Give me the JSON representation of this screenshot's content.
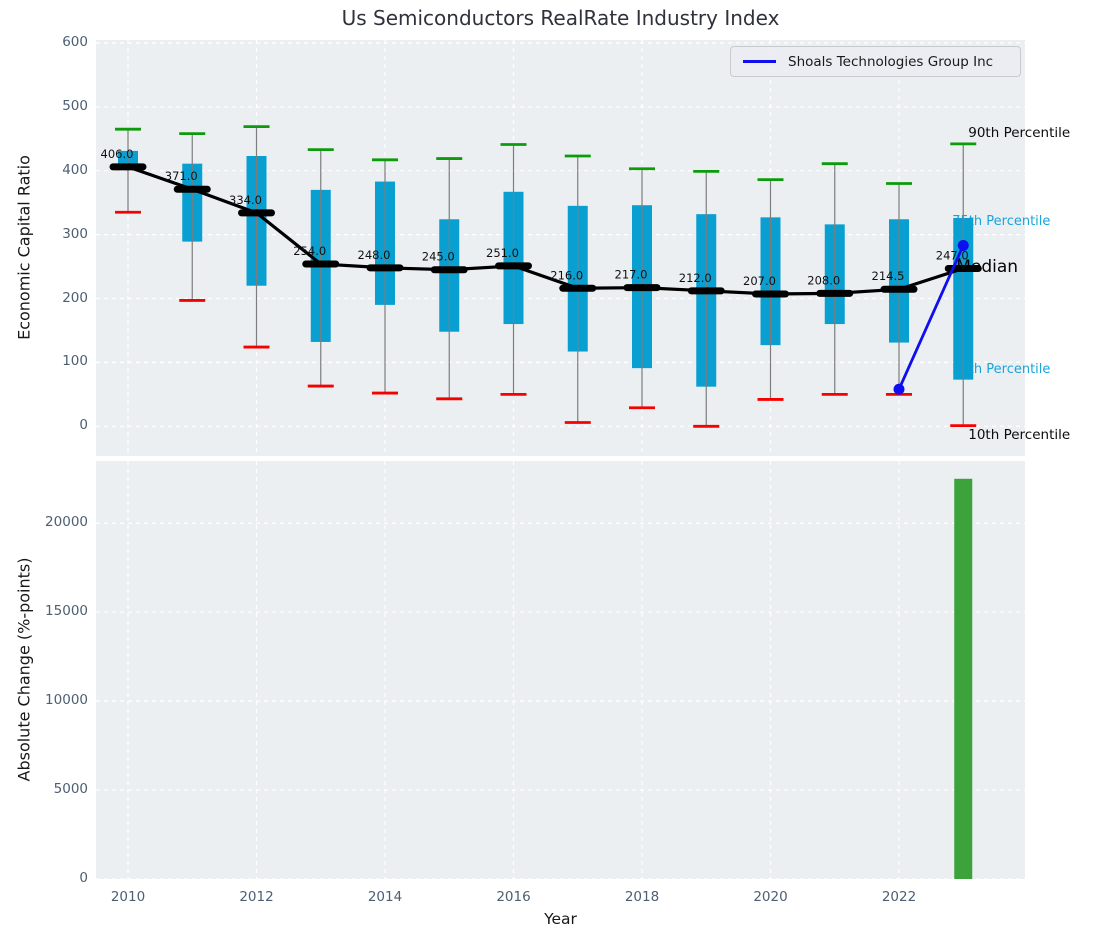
{
  "title": "Us Semiconductors RealRate Industry Index",
  "legend": {
    "label": "Shoals Technologies Group Inc",
    "line_color": "#0e0eef"
  },
  "annotations": {
    "p90": "90th Percentile",
    "p75": "75th Percentile",
    "median": "Median",
    "p25": "25th Percentile",
    "p10": "10th Percentile"
  },
  "colors": {
    "plot_background": "#eceff1",
    "grid": "#ffffff",
    "box_fill": "#0a9fd1",
    "whisker": "#7d7d7d",
    "cap_top": "#0b9b0b",
    "cap_bottom": "#f70000",
    "median_line": "#000000",
    "company_line": "#0e0eef",
    "change_bar": "#3ba23c",
    "tick_label": "#4c5f73",
    "cyan_annotation": "#18a5da"
  },
  "chart_data": [
    {
      "type": "boxplot",
      "title": "Us Semiconductors RealRate Industry Index",
      "xlabel": "Year",
      "ylabel": "Economic Capital Ratio",
      "ylim": [
        -48,
        603
      ],
      "yticks": [
        0,
        100,
        200,
        300,
        400,
        500,
        600
      ],
      "xticks": [
        2010,
        2012,
        2014,
        2016,
        2018,
        2020,
        2022
      ],
      "grid": true,
      "legend_position": "upper right",
      "years": [
        2010,
        2011,
        2012,
        2013,
        2014,
        2015,
        2016,
        2017,
        2018,
        2019,
        2020,
        2021,
        2022,
        2023
      ],
      "series": [
        {
          "name": "90th Percentile",
          "values": [
            465,
            458,
            469,
            433,
            417,
            419,
            441,
            423,
            403,
            399,
            386,
            411,
            380,
            442
          ]
        },
        {
          "name": "75th Percentile",
          "values": [
            431,
            411,
            423,
            370,
            383,
            324,
            367,
            345,
            346,
            332,
            327,
            316,
            324,
            326
          ]
        },
        {
          "name": "Median",
          "values": [
            406,
            371,
            334,
            254,
            248,
            245,
            251,
            216,
            217,
            212,
            207,
            208,
            214.5,
            247
          ]
        },
        {
          "name": "25th Percentile",
          "values": [
            403,
            289,
            220,
            132,
            190,
            148,
            160,
            117,
            91,
            62,
            127,
            160,
            131,
            73
          ]
        },
        {
          "name": "10th Percentile",
          "values": [
            335,
            197,
            124,
            63,
            52,
            43,
            50,
            6,
            29,
            0,
            42,
            50,
            50,
            1
          ]
        },
        {
          "name": "Shoals Technologies Group Inc",
          "years": [
            2022,
            2023
          ],
          "values": [
            58,
            283
          ]
        }
      ],
      "median_labels": [
        "406.0",
        "371.0",
        "334.0",
        "254.0",
        "248.0",
        "245.0",
        "251.0",
        "216.0",
        "217.0",
        "212.0",
        "207.0",
        "208.0",
        "214.5",
        "247.0"
      ]
    },
    {
      "type": "bar",
      "xlabel": "Year",
      "ylabel": "Absolute Change (%-points)",
      "ylim": [
        0,
        23500
      ],
      "yticks": [
        0,
        5000,
        10000,
        15000,
        20000
      ],
      "xticks": [
        2010,
        2012,
        2014,
        2016,
        2018,
        2020,
        2022
      ],
      "grid": true,
      "x": [
        2023
      ],
      "values": [
        22500
      ]
    }
  ]
}
